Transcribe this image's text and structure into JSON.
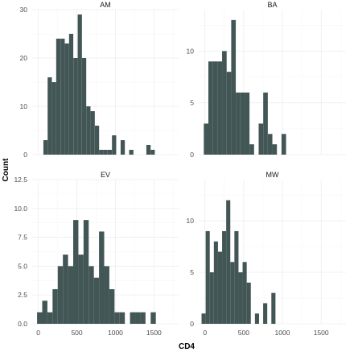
{
  "chart_data": {
    "type": "bar",
    "kind": "histogram",
    "xlabel": "CD4",
    "ylabel": "Count",
    "bar_color": "#435656",
    "grid": true,
    "shared_x_axis": true,
    "x_range": [
      -80,
      1820
    ],
    "x_ticks": [
      0,
      500,
      1000,
      1500
    ],
    "facets": [
      {
        "label": "AM",
        "ylim": [
          0,
          30
        ],
        "y_ticks": [
          0,
          10,
          20,
          30
        ],
        "y_tick_labels": [
          "0",
          "10",
          "20",
          "30"
        ],
        "x_tick_labels": [],
        "bins": [
          [
            93,
            3
          ],
          [
            148,
            16
          ],
          [
            204,
            15
          ],
          [
            259,
            24
          ],
          [
            315,
            24
          ],
          [
            371,
            23
          ],
          [
            426,
            25
          ],
          [
            482,
            20
          ],
          [
            538,
            29
          ],
          [
            594,
            20
          ],
          [
            649,
            10
          ],
          [
            705,
            9
          ],
          [
            761,
            6
          ],
          [
            816,
            1
          ],
          [
            872,
            1
          ],
          [
            928,
            1
          ],
          [
            983,
            4
          ],
          [
            1039,
            0
          ],
          [
            1095,
            3
          ],
          [
            1150,
            0
          ],
          [
            1206,
            1
          ],
          [
            1262,
            0
          ],
          [
            1317,
            0
          ],
          [
            1373,
            0
          ],
          [
            1429,
            2
          ],
          [
            1484,
            1
          ]
        ]
      },
      {
        "label": "BA",
        "ylim": [
          0,
          14
        ],
        "y_ticks": [
          0,
          5,
          10
        ],
        "y_tick_labels": [
          "0",
          "5",
          "10"
        ],
        "x_tick_labels": [],
        "bins": [
          [
            15,
            3
          ],
          [
            74,
            9
          ],
          [
            133,
            9
          ],
          [
            192,
            9
          ],
          [
            251,
            10
          ],
          [
            310,
            8
          ],
          [
            369,
            13
          ],
          [
            428,
            6
          ],
          [
            487,
            6
          ],
          [
            546,
            6
          ],
          [
            605,
            1
          ],
          [
            664,
            0
          ],
          [
            723,
            3
          ],
          [
            782,
            6
          ],
          [
            841,
            2
          ],
          [
            900,
            1
          ],
          [
            959,
            0
          ],
          [
            1018,
            2
          ]
        ]
      },
      {
        "label": "EV",
        "ylim": [
          0,
          12.5
        ],
        "y_ticks": [
          0,
          2.5,
          5.0,
          7.5,
          10.0,
          12.5
        ],
        "y_tick_labels": [
          "0.0",
          "2.5",
          "5.0",
          "7.5",
          "10.0",
          "12.5"
        ],
        "x_tick_labels": [
          "0",
          "500",
          "1000",
          "1500"
        ],
        "bins": [
          [
            17,
            1
          ],
          [
            84,
            2
          ],
          [
            151,
            1
          ],
          [
            218,
            3
          ],
          [
            285,
            5
          ],
          [
            352,
            6
          ],
          [
            419,
            5
          ],
          [
            486,
            9
          ],
          [
            553,
            6
          ],
          [
            620,
            9
          ],
          [
            687,
            5
          ],
          [
            754,
            4
          ],
          [
            821,
            8
          ],
          [
            888,
            5
          ],
          [
            955,
            3
          ],
          [
            1022,
            1
          ],
          [
            1089,
            1
          ],
          [
            1156,
            0
          ],
          [
            1223,
            1
          ],
          [
            1290,
            1
          ],
          [
            1357,
            1
          ],
          [
            1424,
            0
          ],
          [
            1491,
            1
          ]
        ]
      },
      {
        "label": "MW",
        "ylim": [
          0,
          14
        ],
        "y_ticks": [
          0,
          5,
          10
        ],
        "y_tick_labels": [
          "0",
          "5",
          "10"
        ],
        "x_tick_labels": [
          "0",
          "500",
          "1000",
          "1500"
        ],
        "bins": [
          [
            -17,
            1
          ],
          [
            36,
            9
          ],
          [
            89,
            5
          ],
          [
            142,
            8
          ],
          [
            195,
            7
          ],
          [
            248,
            9
          ],
          [
            301,
            12
          ],
          [
            354,
            6
          ],
          [
            407,
            9
          ],
          [
            460,
            5
          ],
          [
            513,
            6
          ],
          [
            566,
            4
          ],
          [
            619,
            0
          ],
          [
            672,
            1
          ],
          [
            725,
            0
          ],
          [
            778,
            2
          ],
          [
            831,
            0
          ],
          [
            884,
            3
          ]
        ]
      }
    ]
  }
}
